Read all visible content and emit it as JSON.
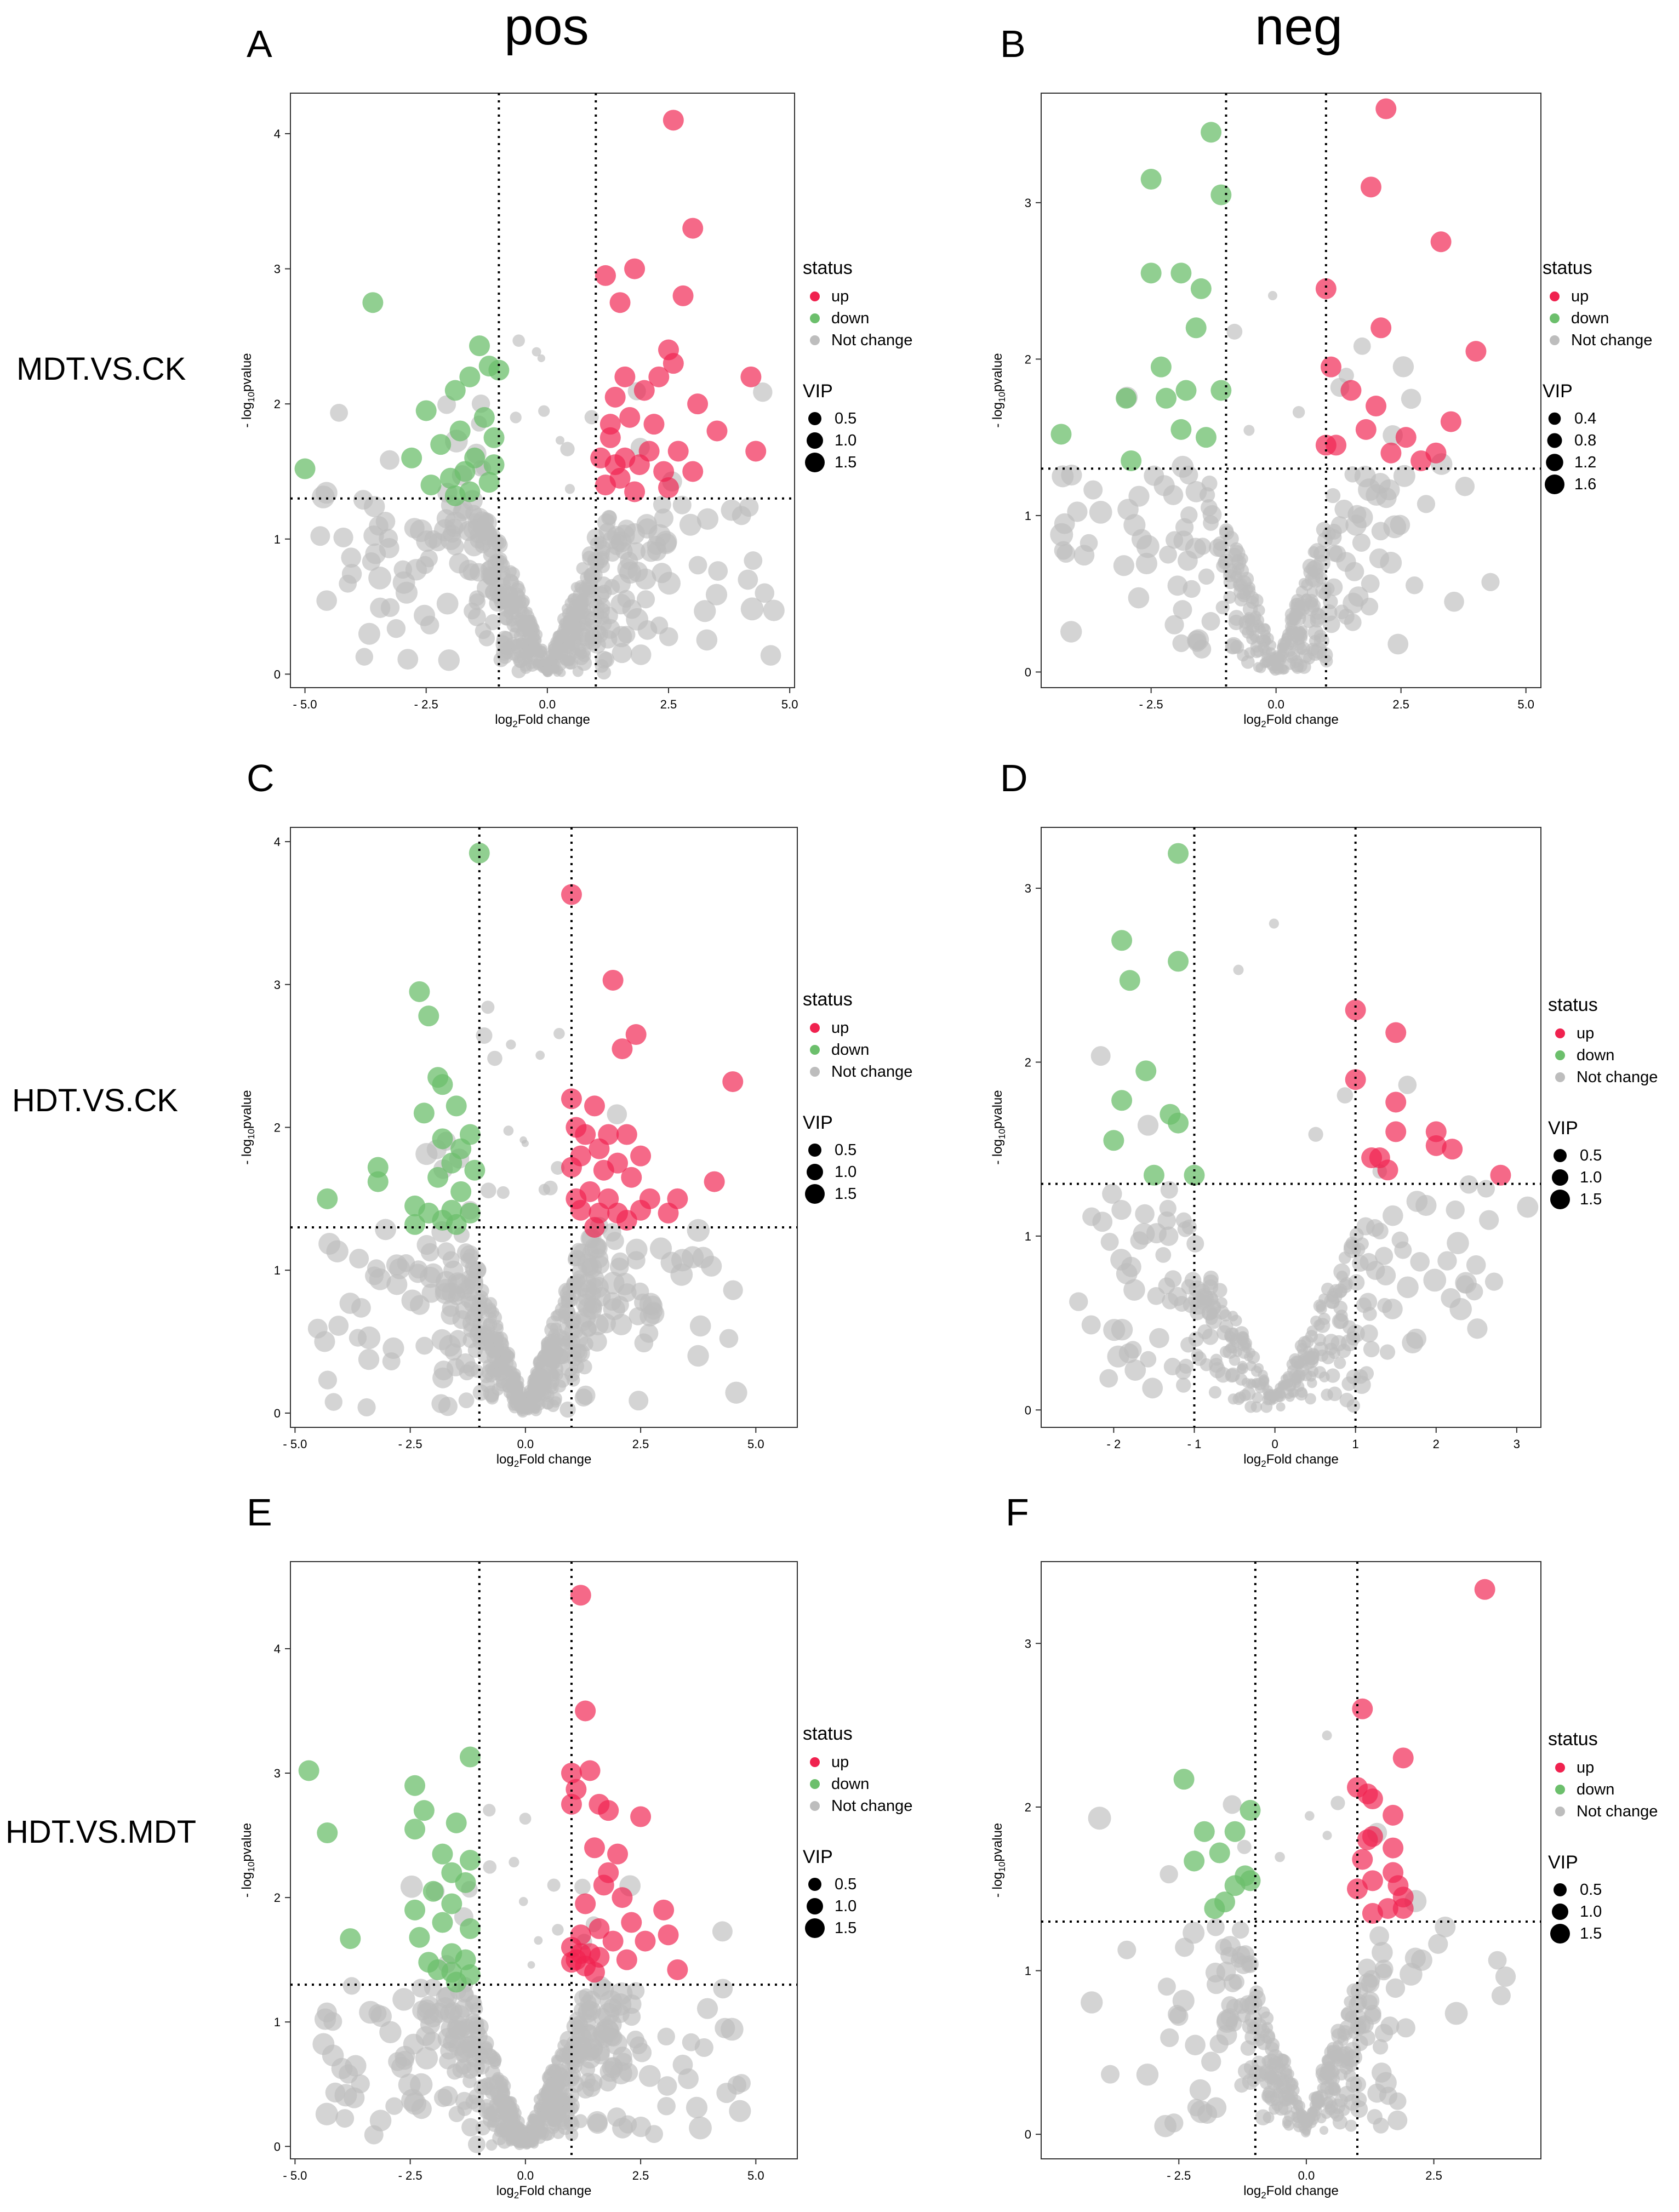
{
  "columns": {
    "pos": "pos",
    "neg": "neg"
  },
  "rows": {
    "r1": "MDT.VS.CK",
    "r2": "HDT.VS.CK",
    "r3": "HDT.VS.MDT"
  },
  "colors": {
    "up": "#f0224f",
    "down": "#6cbf6c",
    "not_change": "#bdbdbd"
  },
  "legend": {
    "status_title": "status",
    "status_items": [
      "up",
      "down",
      "Not change"
    ],
    "vip_title": "VIP"
  },
  "axis_labels": {
    "xlabel": "log2Fold change",
    "ylabel": "-log10pvalue"
  },
  "chart_data": [
    {
      "id": "A",
      "letter": "A",
      "type": "scatter",
      "comparison": "MDT.VS.CK",
      "mode": "pos",
      "xlim": [
        -5.3,
        5.1
      ],
      "ylim": [
        -0.1,
        4.3
      ],
      "xticks": [
        -5.0,
        -2.5,
        0.0,
        2.5,
        5.0
      ],
      "xtick_labels": [
        "- 5.0",
        "- 2.5",
        "0.0",
        "2.5",
        "5.0"
      ],
      "yticks": [
        0,
        1,
        2,
        3,
        4
      ],
      "ytick_labels": [
        "0",
        "1",
        "2",
        "3",
        "4"
      ],
      "vlines": [
        -1,
        1
      ],
      "hline": 1.3,
      "vip_legend": [
        0.5,
        1.0,
        1.5
      ],
      "vip_labels": [
        "0.5",
        "1.0",
        "1.5"
      ],
      "up": [
        [
          2.6,
          4.1
        ],
        [
          3.0,
          3.3
        ],
        [
          1.8,
          3.0
        ],
        [
          1.2,
          2.95
        ],
        [
          1.5,
          2.75
        ],
        [
          2.8,
          2.8
        ],
        [
          2.5,
          2.4
        ],
        [
          2.6,
          2.3
        ],
        [
          3.1,
          2.0
        ],
        [
          4.2,
          2.2
        ],
        [
          4.3,
          1.65
        ],
        [
          3.5,
          1.8
        ],
        [
          2.0,
          2.1
        ],
        [
          2.3,
          2.2
        ],
        [
          1.4,
          2.05
        ],
        [
          1.7,
          1.9
        ],
        [
          2.2,
          1.85
        ],
        [
          1.3,
          1.75
        ],
        [
          1.6,
          1.6
        ],
        [
          1.9,
          1.55
        ],
        [
          2.4,
          1.5
        ],
        [
          2.7,
          1.65
        ],
        [
          1.5,
          1.45
        ],
        [
          1.2,
          1.4
        ],
        [
          1.8,
          1.35
        ],
        [
          2.5,
          1.38
        ],
        [
          3.0,
          1.5
        ],
        [
          1.4,
          1.55
        ],
        [
          2.1,
          1.65
        ],
        [
          1.1,
          1.6
        ],
        [
          1.3,
          1.85
        ],
        [
          1.6,
          2.2
        ]
      ],
      "down": [
        [
          -3.6,
          2.75
        ],
        [
          -5.0,
          1.52
        ],
        [
          -1.4,
          2.43
        ],
        [
          -1.2,
          2.28
        ],
        [
          -1.0,
          2.25
        ],
        [
          -1.6,
          2.2
        ],
        [
          -1.9,
          2.1
        ],
        [
          -2.5,
          1.95
        ],
        [
          -1.3,
          1.9
        ],
        [
          -1.8,
          1.8
        ],
        [
          -1.1,
          1.75
        ],
        [
          -2.2,
          1.7
        ],
        [
          -1.5,
          1.6
        ],
        [
          -2.8,
          1.6
        ],
        [
          -1.7,
          1.5
        ],
        [
          -2.0,
          1.45
        ],
        [
          -1.2,
          1.42
        ],
        [
          -2.4,
          1.4
        ],
        [
          -1.6,
          1.35
        ],
        [
          -1.9,
          1.32
        ],
        [
          -1.1,
          1.55
        ]
      ],
      "ns_seed": 11,
      "ns_count": 560
    },
    {
      "id": "B",
      "letter": "B",
      "type": "scatter",
      "comparison": "MDT.VS.CK",
      "mode": "neg",
      "xlim": [
        -4.7,
        5.3
      ],
      "ylim": [
        -0.1,
        3.7
      ],
      "xticks": [
        -2.5,
        0.0,
        2.5,
        5.0
      ],
      "xtick_labels": [
        "- 2.5",
        "0.0",
        "2.5",
        "5.0"
      ],
      "yticks": [
        0,
        1,
        2,
        3
      ],
      "ytick_labels": [
        "0",
        "1",
        "2",
        "3"
      ],
      "vlines": [
        -1,
        1
      ],
      "hline": 1.3,
      "vip_legend": [
        0.4,
        0.8,
        1.2,
        1.6
      ],
      "vip_labels": [
        "0.4",
        "0.8",
        "1.2",
        "1.6"
      ],
      "up": [
        [
          2.2,
          3.6
        ],
        [
          1.9,
          3.1
        ],
        [
          3.3,
          2.75
        ],
        [
          1.0,
          2.45
        ],
        [
          2.1,
          2.2
        ],
        [
          4.0,
          2.05
        ],
        [
          1.1,
          1.95
        ],
        [
          1.5,
          1.8
        ],
        [
          2.0,
          1.7
        ],
        [
          3.5,
          1.6
        ],
        [
          2.6,
          1.5
        ],
        [
          1.8,
          1.55
        ],
        [
          1.2,
          1.45
        ],
        [
          2.3,
          1.4
        ],
        [
          3.2,
          1.4
        ],
        [
          2.9,
          1.35
        ],
        [
          1.0,
          1.45
        ]
      ],
      "down": [
        [
          -1.3,
          3.45
        ],
        [
          -2.5,
          3.15
        ],
        [
          -1.1,
          3.05
        ],
        [
          -2.5,
          2.55
        ],
        [
          -1.9,
          2.55
        ],
        [
          -1.5,
          2.45
        ],
        [
          -1.6,
          2.2
        ],
        [
          -2.3,
          1.95
        ],
        [
          -1.1,
          1.8
        ],
        [
          -2.2,
          1.75
        ],
        [
          -1.8,
          1.8
        ],
        [
          -3.0,
          1.75
        ],
        [
          -4.3,
          1.52
        ],
        [
          -1.4,
          1.5
        ],
        [
          -1.9,
          1.55
        ],
        [
          -2.9,
          1.35
        ]
      ],
      "ns_seed": 23,
      "ns_count": 330
    },
    {
      "id": "C",
      "letter": "C",
      "type": "scatter",
      "comparison": "HDT.VS.CK",
      "mode": "pos",
      "xlim": [
        -5.1,
        5.9
      ],
      "ylim": [
        -0.1,
        4.1
      ],
      "xticks": [
        -5.0,
        -2.5,
        0.0,
        2.5,
        5.0
      ],
      "xtick_labels": [
        "- 5.0",
        "- 2.5",
        "0.0",
        "2.5",
        "5.0"
      ],
      "yticks": [
        0,
        1,
        2,
        3,
        4
      ],
      "ytick_labels": [
        "0",
        "1",
        "2",
        "3",
        "4"
      ],
      "vlines": [
        -1,
        1
      ],
      "hline": 1.3,
      "vip_legend": [
        0.5,
        1.0,
        1.5
      ],
      "vip_labels": [
        "0.5",
        "1.0",
        "1.5"
      ],
      "up": [
        [
          1.0,
          3.63
        ],
        [
          1.9,
          3.03
        ],
        [
          2.4,
          2.65
        ],
        [
          4.5,
          2.32
        ],
        [
          2.1,
          2.55
        ],
        [
          1.0,
          2.2
        ],
        [
          1.5,
          2.15
        ],
        [
          1.1,
          2.0
        ],
        [
          1.3,
          1.95
        ],
        [
          1.8,
          1.95
        ],
        [
          2.2,
          1.95
        ],
        [
          1.6,
          1.85
        ],
        [
          1.2,
          1.8
        ],
        [
          2.0,
          1.75
        ],
        [
          2.5,
          1.8
        ],
        [
          1.7,
          1.7
        ],
        [
          2.3,
          1.65
        ],
        [
          4.1,
          1.62
        ],
        [
          1.0,
          1.72
        ],
        [
          1.4,
          1.55
        ],
        [
          2.7,
          1.5
        ],
        [
          3.3,
          1.5
        ],
        [
          1.2,
          1.42
        ],
        [
          1.6,
          1.4
        ],
        [
          2.0,
          1.4
        ],
        [
          2.5,
          1.42
        ],
        [
          1.8,
          1.5
        ],
        [
          3.1,
          1.4
        ],
        [
          1.1,
          1.5
        ],
        [
          1.5,
          1.3
        ],
        [
          2.2,
          1.35
        ]
      ],
      "down": [
        [
          -1.0,
          3.92
        ],
        [
          -2.3,
          2.95
        ],
        [
          -2.1,
          2.78
        ],
        [
          -1.9,
          2.35
        ],
        [
          -1.8,
          2.3
        ],
        [
          -2.2,
          2.1
        ],
        [
          -1.5,
          2.15
        ],
        [
          -1.2,
          1.95
        ],
        [
          -1.8,
          1.92
        ],
        [
          -1.4,
          1.85
        ],
        [
          -3.2,
          1.72
        ],
        [
          -1.6,
          1.75
        ],
        [
          -1.9,
          1.65
        ],
        [
          -1.1,
          1.7
        ],
        [
          -3.2,
          1.62
        ],
        [
          -1.4,
          1.55
        ],
        [
          -4.3,
          1.5
        ],
        [
          -2.4,
          1.45
        ],
        [
          -1.6,
          1.42
        ],
        [
          -2.1,
          1.4
        ],
        [
          -1.2,
          1.4
        ],
        [
          -1.8,
          1.35
        ],
        [
          -2.4,
          1.32
        ],
        [
          -1.5,
          1.32
        ]
      ],
      "ns_seed": 37,
      "ns_count": 560
    },
    {
      "id": "D",
      "letter": "D",
      "type": "scatter",
      "comparison": "HDT.VS.CK",
      "mode": "neg",
      "xlim": [
        -2.9,
        3.3
      ],
      "ylim": [
        -0.1,
        3.35
      ],
      "xticks": [
        -2,
        -1,
        0,
        1,
        2,
        3
      ],
      "xtick_labels": [
        "- 2",
        "- 1",
        "0",
        "1",
        "2",
        "3"
      ],
      "yticks": [
        0,
        1,
        2,
        3
      ],
      "ytick_labels": [
        "0",
        "1",
        "2",
        "3"
      ],
      "vlines": [
        -1,
        1
      ],
      "hline": 1.3,
      "vip_legend": [
        0.5,
        1.0,
        1.5
      ],
      "vip_labels": [
        "0.5",
        "1.0",
        "1.5"
      ],
      "up": [
        [
          1.0,
          2.3
        ],
        [
          1.5,
          2.17
        ],
        [
          1.0,
          1.9
        ],
        [
          1.5,
          1.77
        ],
        [
          2.0,
          1.6
        ],
        [
          1.5,
          1.6
        ],
        [
          2.2,
          1.5
        ],
        [
          2.0,
          1.52
        ],
        [
          1.2,
          1.45
        ],
        [
          1.3,
          1.45
        ],
        [
          1.4,
          1.38
        ],
        [
          2.8,
          1.35
        ]
      ],
      "down": [
        [
          -1.2,
          3.2
        ],
        [
          -1.9,
          2.7
        ],
        [
          -1.8,
          2.47
        ],
        [
          -1.2,
          2.58
        ],
        [
          -1.6,
          1.95
        ],
        [
          -1.9,
          1.78
        ],
        [
          -1.3,
          1.7
        ],
        [
          -1.2,
          1.65
        ],
        [
          -2.0,
          1.55
        ],
        [
          -1.5,
          1.35
        ],
        [
          -1.0,
          1.35
        ]
      ],
      "ns_seed": 51,
      "ns_count": 330
    },
    {
      "id": "E",
      "letter": "E",
      "type": "scatter",
      "comparison": "HDT.VS.MDT",
      "mode": "pos",
      "xlim": [
        -5.1,
        5.9
      ],
      "ylim": [
        -0.1,
        4.7
      ],
      "xticks": [
        -5.0,
        -2.5,
        0.0,
        2.5,
        5.0
      ],
      "xtick_labels": [
        "- 5.0",
        "- 2.5",
        "0.0",
        "2.5",
        "5.0"
      ],
      "yticks": [
        0,
        1,
        2,
        3,
        4
      ],
      "ytick_labels": [
        "0",
        "1",
        "2",
        "3",
        "4"
      ],
      "vlines": [
        -1,
        1
      ],
      "hline": 1.3,
      "vip_legend": [
        0.5,
        1.0,
        1.5
      ],
      "vip_labels": [
        "0.5",
        "1.0",
        "1.5"
      ],
      "up": [
        [
          1.2,
          4.43
        ],
        [
          1.3,
          3.5
        ],
        [
          1.0,
          3.0
        ],
        [
          1.4,
          3.02
        ],
        [
          1.1,
          2.87
        ],
        [
          1.6,
          2.75
        ],
        [
          2.5,
          2.65
        ],
        [
          1.8,
          2.7
        ],
        [
          1.0,
          2.75
        ],
        [
          2.0,
          2.35
        ],
        [
          1.5,
          2.4
        ],
        [
          1.8,
          2.2
        ],
        [
          1.7,
          2.1
        ],
        [
          2.1,
          2.0
        ],
        [
          3.0,
          1.9
        ],
        [
          1.3,
          1.95
        ],
        [
          2.3,
          1.8
        ],
        [
          1.6,
          1.75
        ],
        [
          1.2,
          1.7
        ],
        [
          1.9,
          1.65
        ],
        [
          2.6,
          1.65
        ],
        [
          3.1,
          1.7
        ],
        [
          1.0,
          1.6
        ],
        [
          1.4,
          1.55
        ],
        [
          1.1,
          1.5
        ],
        [
          1.3,
          1.45
        ],
        [
          1.5,
          1.4
        ],
        [
          3.3,
          1.42
        ],
        [
          1.2,
          1.55
        ],
        [
          1.6,
          1.52
        ],
        [
          2.2,
          1.5
        ],
        [
          1.0,
          1.48
        ]
      ],
      "down": [
        [
          -4.7,
          3.02
        ],
        [
          -2.4,
          2.9
        ],
        [
          -1.2,
          3.13
        ],
        [
          -2.2,
          2.7
        ],
        [
          -1.5,
          2.6
        ],
        [
          -2.4,
          2.55
        ],
        [
          -4.3,
          2.52
        ],
        [
          -1.2,
          2.3
        ],
        [
          -1.8,
          2.35
        ],
        [
          -1.6,
          2.2
        ],
        [
          -1.3,
          2.12
        ],
        [
          -2.0,
          2.05
        ],
        [
          -1.6,
          1.95
        ],
        [
          -2.4,
          1.9
        ],
        [
          -1.8,
          1.8
        ],
        [
          -1.2,
          1.75
        ],
        [
          -2.3,
          1.68
        ],
        [
          -3.8,
          1.67
        ],
        [
          -1.6,
          1.55
        ],
        [
          -1.3,
          1.5
        ],
        [
          -2.1,
          1.48
        ],
        [
          -1.6,
          1.4
        ],
        [
          -1.9,
          1.42
        ],
        [
          -1.2,
          1.38
        ],
        [
          -1.5,
          1.32
        ]
      ],
      "ns_seed": 67,
      "ns_count": 560
    },
    {
      "id": "F",
      "letter": "F",
      "type": "scatter",
      "comparison": "HDT.VS.MDT",
      "mode": "neg",
      "xlim": [
        -5.2,
        4.6
      ],
      "ylim": [
        -0.15,
        3.5
      ],
      "xticks": [
        -2.5,
        0.0,
        2.5
      ],
      "xtick_labels": [
        "- 2.5",
        "0.0",
        "2.5"
      ],
      "yticks": [
        0,
        1,
        2,
        3
      ],
      "ytick_labels": [
        "0",
        "1",
        "2",
        "3"
      ],
      "vlines": [
        -1,
        1
      ],
      "hline": 1.3,
      "vip_legend": [
        0.5,
        1.0,
        1.5
      ],
      "vip_labels": [
        "0.5",
        "1.0",
        "1.5"
      ],
      "up": [
        [
          3.5,
          3.33
        ],
        [
          1.1,
          2.6
        ],
        [
          1.9,
          2.3
        ],
        [
          1.0,
          2.12
        ],
        [
          1.3,
          2.05
        ],
        [
          1.2,
          2.08
        ],
        [
          1.7,
          1.95
        ],
        [
          1.3,
          1.82
        ],
        [
          1.2,
          1.8
        ],
        [
          1.7,
          1.75
        ],
        [
          1.1,
          1.68
        ],
        [
          1.7,
          1.6
        ],
        [
          1.3,
          1.55
        ],
        [
          1.8,
          1.52
        ],
        [
          1.0,
          1.5
        ],
        [
          1.9,
          1.45
        ],
        [
          1.6,
          1.38
        ],
        [
          1.3,
          1.35
        ],
        [
          1.9,
          1.38
        ]
      ],
      "down": [
        [
          -2.4,
          2.17
        ],
        [
          -1.1,
          1.98
        ],
        [
          -2.0,
          1.85
        ],
        [
          -1.4,
          1.85
        ],
        [
          -1.7,
          1.72
        ],
        [
          -2.2,
          1.67
        ],
        [
          -1.2,
          1.58
        ],
        [
          -1.1,
          1.55
        ],
        [
          -1.4,
          1.52
        ],
        [
          -1.6,
          1.42
        ],
        [
          -1.8,
          1.38
        ]
      ],
      "ns_seed": 83,
      "ns_count": 330
    }
  ]
}
